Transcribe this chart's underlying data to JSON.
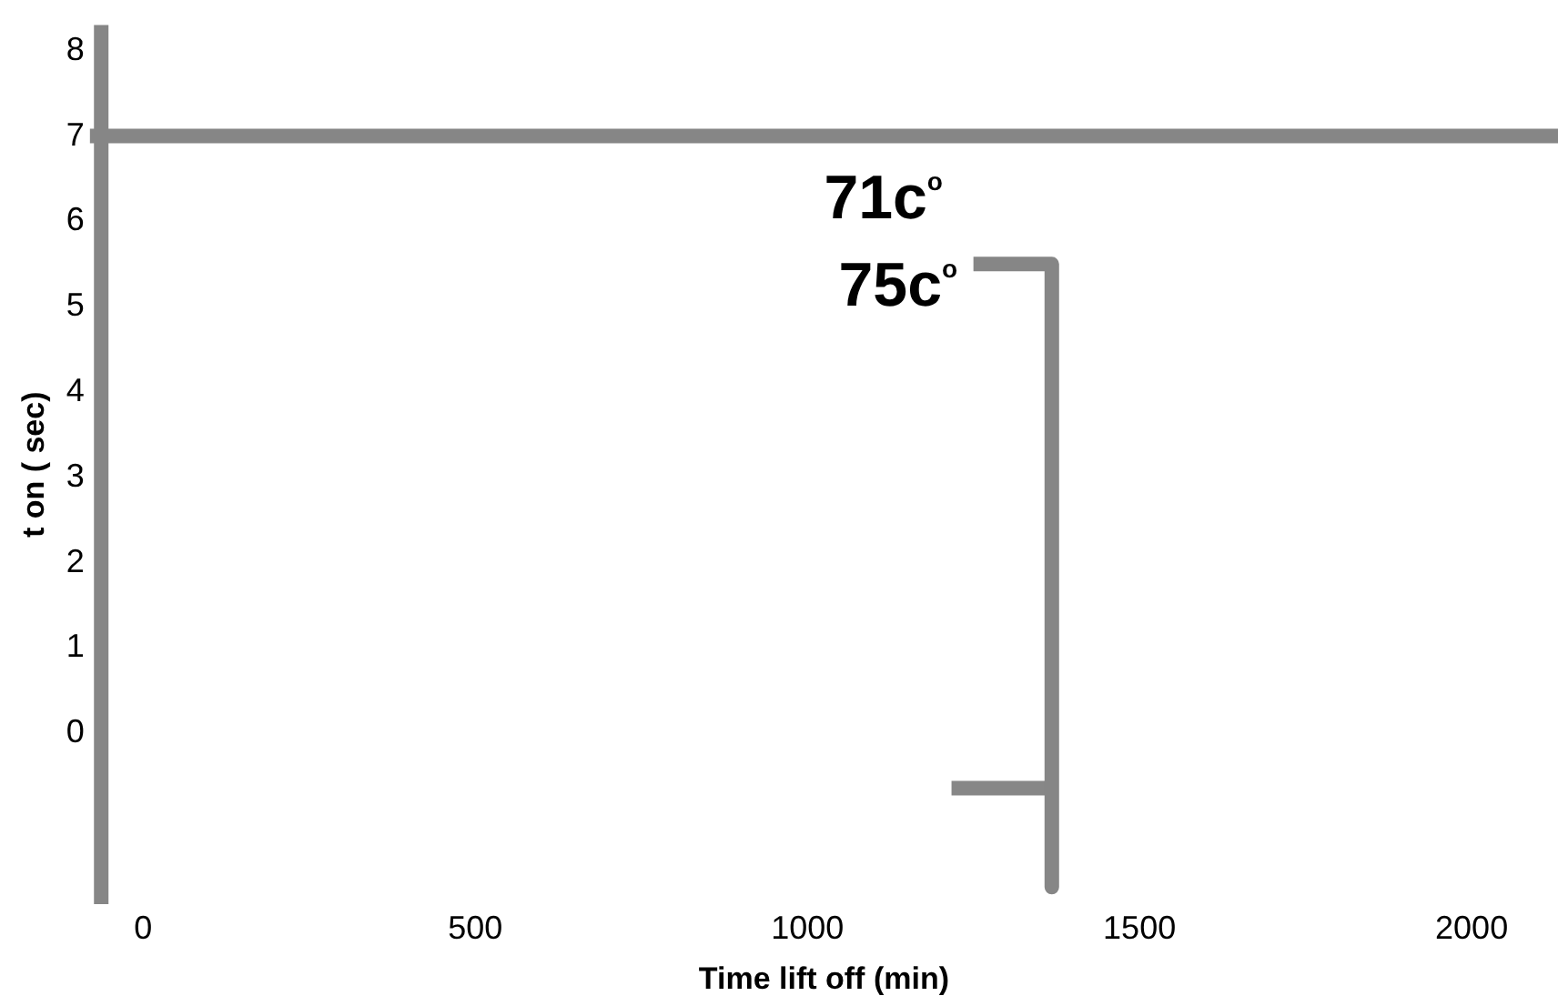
{
  "chart_data": {
    "type": "line",
    "xlabel": "Time lift off (min)",
    "ylabel": "t on ( sec)",
    "xlim": [
      -80,
      2130
    ],
    "ylim": [
      -2,
      8.3
    ],
    "xticks": [
      0,
      500,
      1000,
      1500,
      2000
    ],
    "yticks": [
      0,
      1,
      2,
      3,
      4,
      5,
      6,
      7,
      8
    ],
    "grid": false,
    "legend": false,
    "marker": "none",
    "line_style": "solid",
    "series": [
      {
        "color": "#868686",
        "x": [
          1250,
          1368,
          1368
        ],
        "values": [
          5.5,
          5.5,
          -1.8
        ]
      },
      {
        "color": "#878787",
        "x": [
          1217,
          1368
        ],
        "values": [
          -0.64,
          -0.64
        ]
      }
    ],
    "ref_lines": [
      {
        "axis": "y",
        "value": 7,
        "color": "#868686"
      },
      {
        "axis": "x",
        "value": -63,
        "color": "#868686"
      }
    ],
    "annotations": [
      "71c$^{o}$",
      "75c$^{o}$"
    ]
  }
}
